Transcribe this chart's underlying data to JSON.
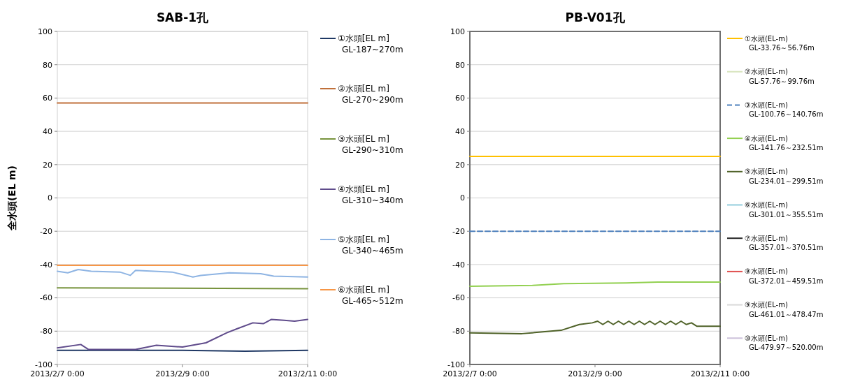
{
  "chart_data": [
    {
      "type": "line",
      "title": "SAB-1孔",
      "ylabel": "全水頭(EL m)",
      "ylim": [
        -100,
        100
      ],
      "yticks": [
        -100,
        -80,
        -60,
        -40,
        -20,
        0,
        20,
        40,
        60,
        80,
        100
      ],
      "xlim": [
        "2013-02-07T00:00",
        "2013-02-11T00:00"
      ],
      "xticks": [
        {
          "value": "2013-02-07T00:00",
          "label": "2013/2/7 0:00"
        },
        {
          "value": "2013-02-09T00:00",
          "label": "2013/2/9 0:00"
        },
        {
          "value": "2013-02-11T00:00",
          "label": "2013/2/11 0:00"
        }
      ],
      "grid": "y",
      "legend": "right",
      "series": [
        {
          "name": "①水頭[EL m]\nGL-187~270m",
          "color": "#1f3864",
          "x": [
            "2013-02-07T00:00",
            "2013-02-09T00:00",
            "2013-02-10T00:00",
            "2013-02-11T00:00"
          ],
          "values": [
            -91.5,
            -91.5,
            -92,
            -91.5
          ]
        },
        {
          "name": "②水頭[EL m]\nGL-270~290m",
          "color": "#c0703a",
          "x": [
            "2013-02-07T00:00",
            "2013-02-11T00:00"
          ],
          "values": [
            57,
            57
          ]
        },
        {
          "name": "③水頭[EL m]\nGL-290~310m",
          "color": "#77933c",
          "x": [
            "2013-02-07T00:00",
            "2013-02-11T00:00"
          ],
          "values": [
            -54,
            -54.5
          ]
        },
        {
          "name": "④水頭[EL m]\nGL-310~340m",
          "color": "#5f4b8b",
          "x": [
            "2013-02-07T00:00",
            "2013-02-07T09:00",
            "2013-02-07T12:00",
            "2013-02-08T06:00",
            "2013-02-08T14:00",
            "2013-02-09T00:00",
            "2013-02-09T09:00",
            "2013-02-09T17:00",
            "2013-02-09T21:00",
            "2013-02-10T03:00",
            "2013-02-10T07:00",
            "2013-02-10T10:00",
            "2013-02-10T15:00",
            "2013-02-10T19:00",
            "2013-02-11T00:00"
          ],
          "values": [
            -90,
            -88,
            -91,
            -91,
            -88.5,
            -89.5,
            -87,
            -81,
            -78.5,
            -75,
            -75.5,
            -73,
            -73.5,
            -74,
            -73
          ]
        },
        {
          "name": "⑤水頭[EL m]\nGL-340~465m",
          "color": "#8eb4e3",
          "x": [
            "2013-02-07T00:00",
            "2013-02-07T04:00",
            "2013-02-07T08:00",
            "2013-02-07T13:00",
            "2013-02-08T00:00",
            "2013-02-08T04:00",
            "2013-02-08T06:00",
            "2013-02-08T20:00",
            "2013-02-09T04:00",
            "2013-02-09T07:00",
            "2013-02-09T18:00",
            "2013-02-10T06:00",
            "2013-02-10T11:00",
            "2013-02-11T00:00"
          ],
          "values": [
            -44,
            -45,
            -43,
            -44,
            -44.5,
            -46.5,
            -43.5,
            -44.5,
            -47.5,
            -46.5,
            -45,
            -45.5,
            -47,
            -47.5
          ]
        },
        {
          "name": "⑥水頭[EL m]\nGL-465~512m",
          "color": "#f79646",
          "x": [
            "2013-02-07T00:00",
            "2013-02-11T00:00"
          ],
          "values": [
            -40.5,
            -40.5
          ]
        }
      ]
    },
    {
      "type": "line",
      "title": "PB-V01孔",
      "ylim": [
        -100,
        100
      ],
      "yticks": [
        -100,
        -80,
        -60,
        -40,
        -20,
        0,
        20,
        40,
        60,
        80,
        100
      ],
      "xlim": [
        "2013-02-07T00:00",
        "2013-02-11T00:00"
      ],
      "xticks": [
        {
          "value": "2013-02-07T00:00",
          "label": "2013/2/7 0:00"
        },
        {
          "value": "2013-02-09T00:00",
          "label": "2013/2/9 0:00"
        },
        {
          "value": "2013-02-11T00:00",
          "label": "2013/2/11 0:00"
        }
      ],
      "grid": "y",
      "legend": "right",
      "series": [
        {
          "name": "①水頭(EL-m)\nGL-33.76～56.76m",
          "color": "#ffc000",
          "x": [
            "2013-02-07T00:00",
            "2013-02-11T00:00"
          ],
          "values": [
            25,
            25
          ]
        },
        {
          "name": "②水頭(EL-m)\nGL-57.76～99.76m",
          "color": "#d7e4bd"
        },
        {
          "name": "③水頭(EL-m)\nGL-100.76～140.76m",
          "color": "#4f81bd",
          "line_style": "dashed",
          "x": [
            "2013-02-07T00:00",
            "2013-02-11T00:00"
          ],
          "values": [
            -20,
            -20
          ]
        },
        {
          "name": "④水頭(EL-m)\nGL-141.76～232.51m",
          "color": "#92d050",
          "x": [
            "2013-02-07T00:00",
            "2013-02-08T00:00",
            "2013-02-08T12:00",
            "2013-02-09T12:00",
            "2013-02-10T00:00",
            "2013-02-11T00:00"
          ],
          "values": [
            -53,
            -52.5,
            -51.5,
            -51,
            -50.5,
            -50.5
          ]
        },
        {
          "name": "⑤水頭(EL-m)\nGL-234.01～299.51m",
          "color": "#4f6228",
          "x": [
            "2013-02-07T00:00",
            "2013-02-07T20:00",
            "2013-02-08T11:00",
            "2013-02-08T18:00",
            "2013-02-08T23:00",
            "2013-02-09T01:00",
            "2013-02-09T03:00",
            "2013-02-09T05:00",
            "2013-02-09T07:00",
            "2013-02-09T09:00",
            "2013-02-09T11:00",
            "2013-02-09T13:00",
            "2013-02-09T15:00",
            "2013-02-09T17:00",
            "2013-02-09T19:00",
            "2013-02-09T21:00",
            "2013-02-09T23:00",
            "2013-02-10T01:00",
            "2013-02-10T03:00",
            "2013-02-10T05:00",
            "2013-02-10T07:00",
            "2013-02-10T09:00",
            "2013-02-10T11:00",
            "2013-02-10T13:00",
            "2013-02-10T15:00",
            "2013-02-11T00:00"
          ],
          "values": [
            -81,
            -81.5,
            -79.5,
            -76,
            -75,
            -74,
            -76,
            -74,
            -76,
            -74,
            -76,
            -74,
            -76,
            -74,
            -76,
            -74,
            -76,
            -74,
            -76,
            -74,
            -76,
            -74,
            -76,
            -75,
            -77,
            -77
          ]
        },
        {
          "name": "⑥水頭(EL-m)\nGL-301.01～355.51m",
          "color": "#93cddd"
        },
        {
          "name": "⑦水頭(EL-m)\nGL-357.01～370.51m",
          "color": "#262626"
        },
        {
          "name": "⑧水頭(EL-m)\nGL-372.01～459.51m",
          "color": "#e0504f"
        },
        {
          "name": "⑨水頭(EL-m)\nGL-461.01～478.47m",
          "color": "#d9d9d9"
        },
        {
          "name": "⑩水頭(EL-m)\nGL-479.97～520.00m",
          "color": "#ccc0da"
        }
      ]
    }
  ]
}
